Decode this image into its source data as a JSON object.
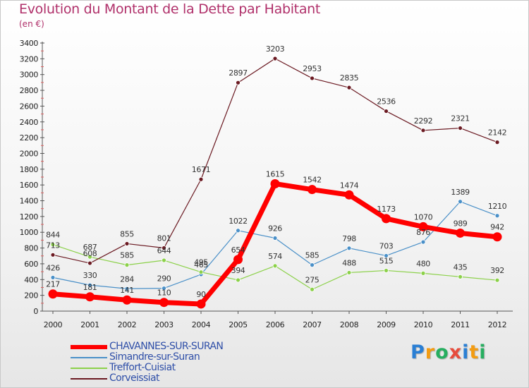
{
  "title": "Evolution du Montant de la Dette par Habitant",
  "subtitle": "(en €)",
  "brand": {
    "letters": [
      "P",
      "r",
      "o",
      "x",
      "i",
      "t",
      "i"
    ],
    "colors": [
      "#2a7fd4",
      "#f39c12",
      "#27ae60",
      "#e74c3c",
      "#2a7fd4",
      "#f39c12",
      "#27ae60"
    ]
  },
  "chart_data": {
    "type": "line",
    "x": [
      "2000",
      "2001",
      "2002",
      "2003",
      "2004",
      "2005",
      "2006",
      "2007",
      "2008",
      "2009",
      "2010",
      "2011",
      "2012"
    ],
    "ylim": [
      0,
      3400
    ],
    "yticks": [
      "0",
      "200",
      "400",
      "600",
      "800",
      "1000",
      "1200",
      "1400",
      "1600",
      "1800",
      "2000",
      "2200",
      "2400",
      "2600",
      "2800",
      "3000",
      "3200",
      "3400"
    ],
    "grid": false,
    "legend_position": "bottom-left",
    "series": [
      {
        "name": "CHAVANNES-SUR-SURAN",
        "color": "#ff0000",
        "emphasis": true,
        "values": [
          217,
          181,
          141,
          110,
          90,
          654,
          1615,
          1542,
          1474,
          1173,
          1070,
          989,
          942
        ],
        "labels": [
          "217",
          "181",
          "141",
          "110",
          "90",
          "654",
          "1615",
          "1542",
          "1474",
          "1173",
          "1070",
          "989",
          "942"
        ]
      },
      {
        "name": "Simandre-sur-Suran",
        "color": "#4a90c8",
        "emphasis": false,
        "values": [
          426,
          330,
          284,
          290,
          465,
          1022,
          926,
          585,
          798,
          703,
          876,
          1389,
          1210
        ],
        "labels": [
          "426",
          "330",
          "284",
          "290",
          "465",
          "1022",
          "926",
          "585",
          "798",
          "703",
          "876",
          "1389",
          "1210"
        ]
      },
      {
        "name": "Treffort-Cuisiat",
        "color": "#8cd14a",
        "emphasis": false,
        "values": [
          844,
          687,
          585,
          644,
          495,
          394,
          574,
          275,
          488,
          515,
          480,
          435,
          392
        ],
        "labels": [
          "844",
          "687",
          "585",
          "644",
          "495",
          "394",
          "574",
          "275",
          "488",
          "515",
          "480",
          "435",
          "392"
        ]
      },
      {
        "name": "Corveissiat",
        "color": "#6b1a22",
        "emphasis": false,
        "values": [
          713,
          608,
          855,
          801,
          1671,
          2897,
          3203,
          2953,
          2835,
          2536,
          2292,
          2321,
          2142
        ],
        "labels": [
          "713",
          "608",
          "855",
          "801",
          "1671",
          "2897",
          "3203",
          "2953",
          "2835",
          "2536",
          "2292",
          "2321",
          "2142"
        ]
      }
    ]
  }
}
